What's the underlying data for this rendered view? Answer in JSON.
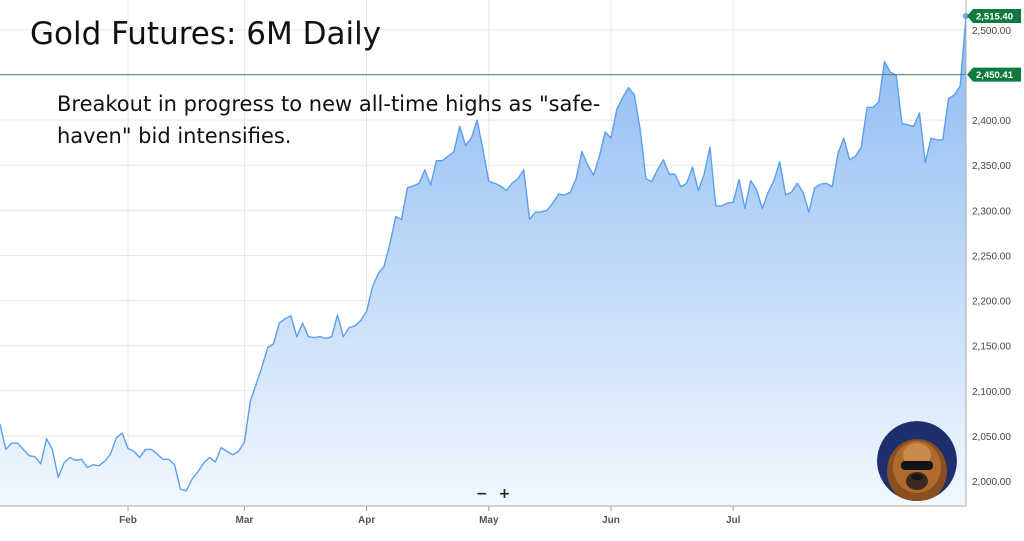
{
  "title": "Gold Futures: 6M Daily",
  "annotation": "Breakout in progress to new all-time highs as \"safe-haven\" bid intensifies.",
  "zoom": {
    "minus": "−",
    "plus": "+"
  },
  "colors": {
    "line": "#5b9ff0",
    "fill_top": "#8ab9f2",
    "fill_bottom": "#f2f8fe",
    "grid": "#e6e6e6",
    "reference_line": "#3d8c5c",
    "current_badge": "#0e7a3d",
    "reference_badge": "#0e7a3d"
  },
  "chart_data": {
    "type": "area",
    "title": "Gold Futures: 6M Daily",
    "ylim": [
      1970,
      2525
    ],
    "y_ticks": [
      "2,000.00",
      "2,050.00",
      "2,100.00",
      "2,150.00",
      "2,200.00",
      "2,250.00",
      "2,300.00",
      "2,350.00",
      "2,400.00",
      "2,450.00",
      "2,500.00"
    ],
    "y_tick_values": [
      2000,
      2050,
      2100,
      2150,
      2200,
      2250,
      2300,
      2350,
      2400,
      2450,
      2500
    ],
    "x_ticks": [
      "Feb",
      "Mar",
      "Apr",
      "May",
      "Jun",
      "Jul"
    ],
    "x_tick_index": [
      22,
      42,
      63,
      84,
      105,
      126
    ],
    "grid": true,
    "reference_line": {
      "value": 2450.41,
      "label": "2,450.41"
    },
    "current_value": {
      "value": 2515.4,
      "label": "2,515.40"
    },
    "series": [
      {
        "values": [
          2063,
          2035,
          2042,
          2042,
          2035,
          2028,
          2027,
          2019,
          2047,
          2035,
          2004,
          2020,
          2026,
          2023,
          2024,
          2015,
          2018,
          2017,
          2022,
          2030,
          2048,
          2053,
          2036,
          2033,
          2026,
          2035,
          2035,
          2030,
          2024,
          2024,
          2018,
          1991,
          1989,
          2002,
          2010,
          2020,
          2026,
          2021,
          2037,
          2033,
          2029,
          2033,
          2043,
          2088,
          2107,
          2126,
          2148,
          2152,
          2175,
          2180,
          2183,
          2160,
          2175,
          2160,
          2159,
          2160,
          2158,
          2160,
          2184,
          2160,
          2170,
          2172,
          2178,
          2188,
          2215,
          2230,
          2238,
          2263,
          2293,
          2290,
          2325,
          2327,
          2330,
          2345,
          2328,
          2355,
          2355,
          2360,
          2365,
          2393,
          2372,
          2380,
          2400,
          2367,
          2332,
          2330,
          2327,
          2322,
          2330,
          2335,
          2345,
          2290,
          2298,
          2298,
          2300,
          2308,
          2318,
          2317,
          2320,
          2335,
          2365,
          2350,
          2339,
          2360,
          2387,
          2380,
          2412,
          2425,
          2436,
          2428,
          2390,
          2335,
          2332,
          2345,
          2356,
          2340,
          2340,
          2326,
          2330,
          2348,
          2322,
          2340,
          2370,
          2305,
          2305,
          2308,
          2309,
          2334,
          2302,
          2333,
          2323,
          2302,
          2320,
          2333,
          2354,
          2317,
          2320,
          2330,
          2320,
          2298,
          2325,
          2329,
          2330,
          2326,
          2363,
          2380,
          2356,
          2360,
          2370,
          2414,
          2414,
          2420,
          2465,
          2453,
          2450,
          2396,
          2395,
          2393,
          2408,
          2353,
          2380,
          2378,
          2378,
          2424,
          2428,
          2438,
          2515.4
        ]
      }
    ]
  }
}
